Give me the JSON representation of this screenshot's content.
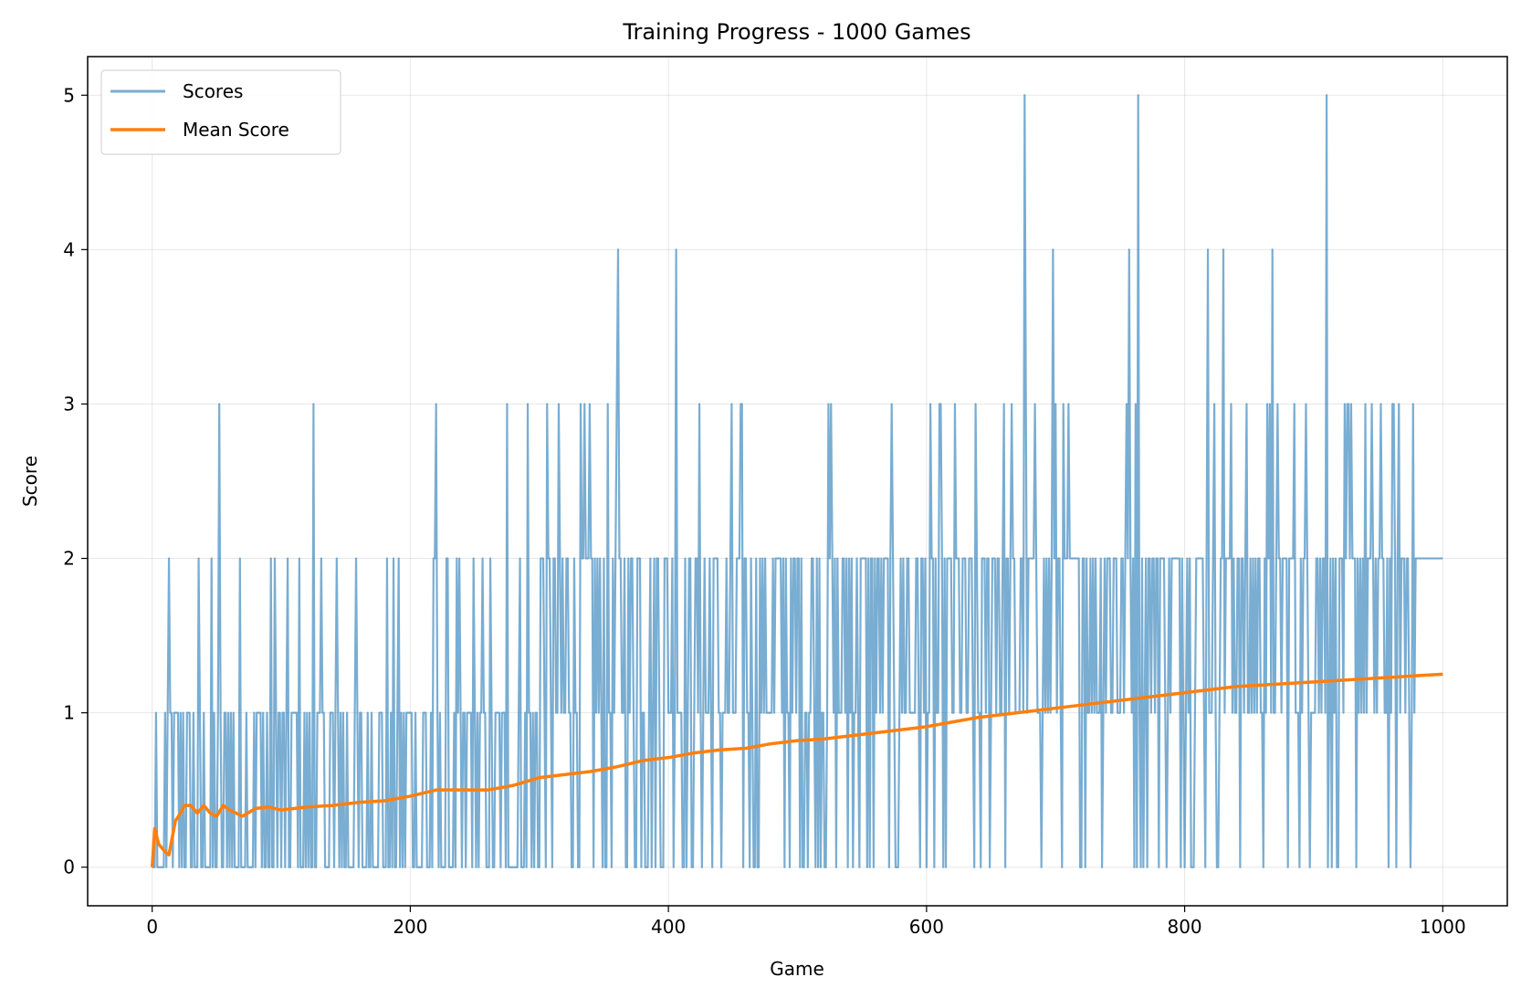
{
  "chart_data": {
    "type": "line",
    "title": "Training Progress - 1000 Games",
    "xlabel": "Game",
    "ylabel": "Score",
    "xlim": [
      -50,
      1050
    ],
    "ylim": [
      -0.25,
      5.25
    ],
    "xticks": [
      0,
      200,
      400,
      600,
      800,
      1000
    ],
    "yticks": [
      0,
      1,
      2,
      3,
      4,
      5
    ],
    "grid": true,
    "legend_position": "top-left",
    "colors": {
      "scores": "#1f77b4",
      "mean": "#ff7f0e"
    },
    "series": [
      {
        "name": "Scores",
        "note": "per-game score (integer values 0-5), rendered as a noisy line",
        "x_range": [
          0,
          1000
        ],
        "spikes": [
          {
            "x": 52,
            "y": 3
          },
          {
            "x": 125,
            "y": 3
          },
          {
            "x": 220,
            "y": 3
          },
          {
            "x": 275,
            "y": 3
          },
          {
            "x": 291,
            "y": 3
          },
          {
            "x": 361,
            "y": 4
          },
          {
            "x": 406,
            "y": 4
          },
          {
            "x": 526,
            "y": 3
          },
          {
            "x": 676,
            "y": 5
          },
          {
            "x": 698,
            "y": 4
          },
          {
            "x": 757,
            "y": 4
          },
          {
            "x": 764,
            "y": 5
          },
          {
            "x": 818,
            "y": 4
          },
          {
            "x": 830,
            "y": 4
          },
          {
            "x": 868,
            "y": 4
          },
          {
            "x": 910,
            "y": 5
          }
        ]
      },
      {
        "name": "Mean Score",
        "points": [
          [
            0,
            0
          ],
          [
            2,
            0.25
          ],
          [
            5,
            0.15
          ],
          [
            10,
            0.1
          ],
          [
            13,
            0.08
          ],
          [
            18,
            0.3
          ],
          [
            22,
            0.35
          ],
          [
            25,
            0.4
          ],
          [
            30,
            0.4
          ],
          [
            35,
            0.35
          ],
          [
            40,
            0.4
          ],
          [
            45,
            0.35
          ],
          [
            50,
            0.33
          ],
          [
            55,
            0.4
          ],
          [
            60,
            0.37
          ],
          [
            70,
            0.33
          ],
          [
            80,
            0.38
          ],
          [
            90,
            0.39
          ],
          [
            100,
            0.37
          ],
          [
            120,
            0.39
          ],
          [
            140,
            0.4
          ],
          [
            160,
            0.42
          ],
          [
            180,
            0.43
          ],
          [
            200,
            0.46
          ],
          [
            220,
            0.5
          ],
          [
            240,
            0.5
          ],
          [
            260,
            0.5
          ],
          [
            280,
            0.53
          ],
          [
            300,
            0.58
          ],
          [
            320,
            0.6
          ],
          [
            340,
            0.62
          ],
          [
            360,
            0.65
          ],
          [
            380,
            0.69
          ],
          [
            400,
            0.71
          ],
          [
            420,
            0.74
          ],
          [
            440,
            0.76
          ],
          [
            460,
            0.77
          ],
          [
            480,
            0.8
          ],
          [
            500,
            0.82
          ],
          [
            520,
            0.83
          ],
          [
            540,
            0.85
          ],
          [
            560,
            0.87
          ],
          [
            580,
            0.89
          ],
          [
            600,
            0.91
          ],
          [
            620,
            0.94
          ],
          [
            640,
            0.97
          ],
          [
            660,
            0.99
          ],
          [
            680,
            1.01
          ],
          [
            700,
            1.03
          ],
          [
            720,
            1.05
          ],
          [
            740,
            1.07
          ],
          [
            760,
            1.09
          ],
          [
            780,
            1.11
          ],
          [
            800,
            1.13
          ],
          [
            820,
            1.15
          ],
          [
            840,
            1.17
          ],
          [
            860,
            1.18
          ],
          [
            880,
            1.19
          ],
          [
            900,
            1.2
          ],
          [
            920,
            1.21
          ],
          [
            940,
            1.22
          ],
          [
            960,
            1.23
          ],
          [
            980,
            1.24
          ],
          [
            1000,
            1.25
          ]
        ]
      }
    ]
  }
}
